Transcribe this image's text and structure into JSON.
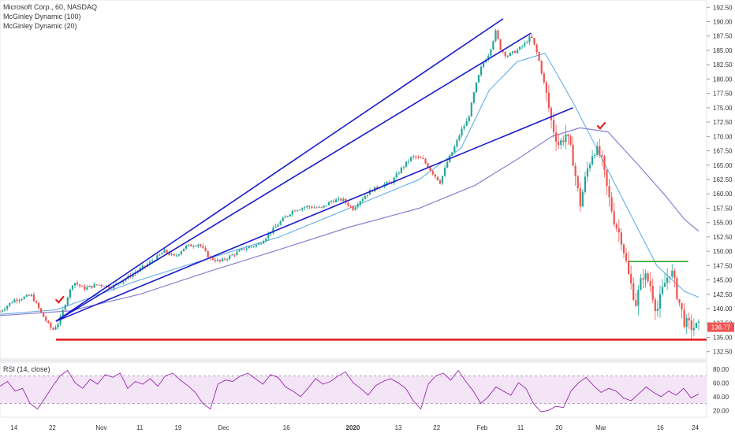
{
  "legend": {
    "title": "Microsoft Corp., 60, NASDAQ",
    "indicator1": "McGinley Dynamic (100)",
    "indicator2": "McGinley Dynamic (20)"
  },
  "rsi_label": "RSI (14, close)",
  "last_price_label": "136.77",
  "colors": {
    "up": "#26a69a",
    "down": "#ef5350",
    "trendline": "#1a1acd",
    "support": "#e01010",
    "resistance": "#20a020",
    "md100": "#8a7fd0",
    "md20": "#5aa9e6",
    "rsi": "#9c27b0",
    "rsi_band": "#f3e5f5"
  },
  "chart_data": [
    {
      "type": "candlestick",
      "title": "Microsoft Corp., 60, NASDAQ",
      "x_ticks": [
        "14",
        "22",
        "Nov",
        "11",
        "19",
        "Dec",
        "16",
        "2020",
        "13",
        "22",
        "Feb",
        "11",
        "20",
        "Mar",
        "16",
        "24"
      ],
      "y_ticks": [
        132.5,
        135.0,
        137.5,
        140.0,
        142.5,
        145.0,
        147.5,
        150.0,
        152.5,
        155.0,
        157.5,
        160.0,
        162.5,
        165.0,
        167.5,
        170.0,
        172.5,
        175.0,
        177.5,
        180.0,
        182.5,
        185.0,
        187.5,
        190.0,
        192.5
      ],
      "ylim": [
        131.5,
        193.5
      ],
      "series": [
        {
          "name": "McGinley Dynamic (100)"
        },
        {
          "name": "McGinley Dynamic (20)"
        }
      ],
      "price_path": [
        {
          "x": 0,
          "y": 139.5
        },
        {
          "x": 0.02,
          "y": 141.5
        },
        {
          "x": 0.045,
          "y": 142.3
        },
        {
          "x": 0.06,
          "y": 139.0
        },
        {
          "x": 0.075,
          "y": 136.2
        },
        {
          "x": 0.085,
          "y": 137.8
        },
        {
          "x": 0.095,
          "y": 141.5
        },
        {
          "x": 0.105,
          "y": 144.7
        },
        {
          "x": 0.12,
          "y": 143.5
        },
        {
          "x": 0.14,
          "y": 144.2
        },
        {
          "x": 0.16,
          "y": 143.8
        },
        {
          "x": 0.19,
          "y": 146.0
        },
        {
          "x": 0.22,
          "y": 148.5
        },
        {
          "x": 0.235,
          "y": 150.0
        },
        {
          "x": 0.25,
          "y": 149.0
        },
        {
          "x": 0.265,
          "y": 150.8
        },
        {
          "x": 0.285,
          "y": 151.3
        },
        {
          "x": 0.3,
          "y": 148.8
        },
        {
          "x": 0.315,
          "y": 148.2
        },
        {
          "x": 0.33,
          "y": 149.2
        },
        {
          "x": 0.35,
          "y": 150.5
        },
        {
          "x": 0.37,
          "y": 151.2
        },
        {
          "x": 0.385,
          "y": 153.0
        },
        {
          "x": 0.4,
          "y": 155.0
        },
        {
          "x": 0.42,
          "y": 157.2
        },
        {
          "x": 0.44,
          "y": 157.8
        },
        {
          "x": 0.46,
          "y": 157.5
        },
        {
          "x": 0.475,
          "y": 158.8
        },
        {
          "x": 0.49,
          "y": 159.0
        },
        {
          "x": 0.505,
          "y": 157.4
        },
        {
          "x": 0.515,
          "y": 158.8
        },
        {
          "x": 0.53,
          "y": 160.5
        },
        {
          "x": 0.545,
          "y": 161.5
        },
        {
          "x": 0.56,
          "y": 162.0
        },
        {
          "x": 0.575,
          "y": 164.5
        },
        {
          "x": 0.59,
          "y": 166.5
        },
        {
          "x": 0.605,
          "y": 166.0
        },
        {
          "x": 0.62,
          "y": 163.5
        },
        {
          "x": 0.63,
          "y": 162.0
        },
        {
          "x": 0.64,
          "y": 165.5
        },
        {
          "x": 0.65,
          "y": 168.0
        },
        {
          "x": 0.66,
          "y": 171.0
        },
        {
          "x": 0.67,
          "y": 173.0
        },
        {
          "x": 0.68,
          "y": 178.5
        },
        {
          "x": 0.69,
          "y": 182.5
        },
        {
          "x": 0.7,
          "y": 184.5
        },
        {
          "x": 0.71,
          "y": 188.5
        },
        {
          "x": 0.715,
          "y": 185.5
        },
        {
          "x": 0.725,
          "y": 184.0
        },
        {
          "x": 0.74,
          "y": 185.0
        },
        {
          "x": 0.75,
          "y": 186.0
        },
        {
          "x": 0.76,
          "y": 187.5
        },
        {
          "x": 0.77,
          "y": 184.0
        },
        {
          "x": 0.78,
          "y": 178.5
        },
        {
          "x": 0.79,
          "y": 172.0
        },
        {
          "x": 0.8,
          "y": 168.5
        },
        {
          "x": 0.81,
          "y": 170.5
        },
        {
          "x": 0.82,
          "y": 166.0
        },
        {
          "x": 0.83,
          "y": 158.0
        },
        {
          "x": 0.84,
          "y": 164.0
        },
        {
          "x": 0.85,
          "y": 168.0
        },
        {
          "x": 0.86,
          "y": 166.5
        },
        {
          "x": 0.87,
          "y": 160.0
        },
        {
          "x": 0.88,
          "y": 155.0
        },
        {
          "x": 0.89,
          "y": 152.0
        },
        {
          "x": 0.9,
          "y": 145.5
        },
        {
          "x": 0.91,
          "y": 141.0
        },
        {
          "x": 0.92,
          "y": 146.0
        },
        {
          "x": 0.93,
          "y": 144.5
        },
        {
          "x": 0.94,
          "y": 139.5
        },
        {
          "x": 0.95,
          "y": 144.0
        },
        {
          "x": 0.96,
          "y": 147.0
        },
        {
          "x": 0.97,
          "y": 142.0
        },
        {
          "x": 0.98,
          "y": 137.5
        },
        {
          "x": 0.99,
          "y": 136.77
        }
      ],
      "mg100_path": [
        {
          "x": 0,
          "y": 138.8
        },
        {
          "x": 0.1,
          "y": 139.6
        },
        {
          "x": 0.2,
          "y": 142.5
        },
        {
          "x": 0.3,
          "y": 146.5
        },
        {
          "x": 0.4,
          "y": 150.3
        },
        {
          "x": 0.5,
          "y": 154.2
        },
        {
          "x": 0.6,
          "y": 157.5
        },
        {
          "x": 0.68,
          "y": 161.5
        },
        {
          "x": 0.74,
          "y": 166.0
        },
        {
          "x": 0.79,
          "y": 170.0
        },
        {
          "x": 0.83,
          "y": 171.5
        },
        {
          "x": 0.87,
          "y": 170.8
        },
        {
          "x": 0.91,
          "y": 165.5
        },
        {
          "x": 0.95,
          "y": 160.0
        },
        {
          "x": 0.98,
          "y": 155.5
        },
        {
          "x": 1.0,
          "y": 153.5
        }
      ],
      "mg20_path": [
        {
          "x": 0,
          "y": 139.0
        },
        {
          "x": 0.08,
          "y": 139.8
        },
        {
          "x": 0.2,
          "y": 145.0
        },
        {
          "x": 0.3,
          "y": 148.8
        },
        {
          "x": 0.4,
          "y": 152.5
        },
        {
          "x": 0.5,
          "y": 157.5
        },
        {
          "x": 0.6,
          "y": 162.5
        },
        {
          "x": 0.66,
          "y": 168.0
        },
        {
          "x": 0.7,
          "y": 178.0
        },
        {
          "x": 0.74,
          "y": 183.0
        },
        {
          "x": 0.78,
          "y": 184.5
        },
        {
          "x": 0.82,
          "y": 176.0
        },
        {
          "x": 0.86,
          "y": 166.5
        },
        {
          "x": 0.9,
          "y": 157.0
        },
        {
          "x": 0.94,
          "y": 147.5
        },
        {
          "x": 0.98,
          "y": 143.0
        },
        {
          "x": 1.0,
          "y": 142.0
        }
      ],
      "trendlines": [
        {
          "x1": 0.08,
          "y1": 137.8,
          "x2": 0.72,
          "y2": 190.5
        },
        {
          "x1": 0.08,
          "y1": 137.8,
          "x2": 0.76,
          "y2": 188.0
        },
        {
          "x1": 0.08,
          "y1": 137.8,
          "x2": 0.82,
          "y2": 175.0
        }
      ],
      "support_level": 134.6,
      "resistance_level": 148.2,
      "last_price": 136.77
    },
    {
      "type": "line",
      "title": "RSI (14, close)",
      "y_ticks": [
        20.0,
        40.0,
        60.0,
        80.0
      ],
      "ylim": [
        10,
        90
      ],
      "band": [
        30,
        70
      ],
      "values": [
        55,
        62,
        48,
        52,
        30,
        22,
        38,
        55,
        70,
        78,
        60,
        52,
        65,
        58,
        72,
        68,
        74,
        52,
        62,
        58,
        66,
        55,
        70,
        74,
        64,
        56,
        46,
        30,
        22,
        58,
        64,
        62,
        70,
        74,
        66,
        58,
        72,
        68,
        54,
        48,
        40,
        52,
        66,
        58,
        62,
        70,
        76,
        60,
        52,
        42,
        56,
        62,
        66,
        60,
        52,
        34,
        22,
        58,
        70,
        74,
        64,
        78,
        62,
        48,
        30,
        40,
        54,
        48,
        42,
        60,
        52,
        30,
        18,
        20,
        26,
        24,
        48,
        60,
        68,
        56,
        46,
        52,
        48,
        38,
        34,
        44,
        54,
        46,
        40,
        48,
        42,
        52,
        38,
        44
      ]
    }
  ]
}
